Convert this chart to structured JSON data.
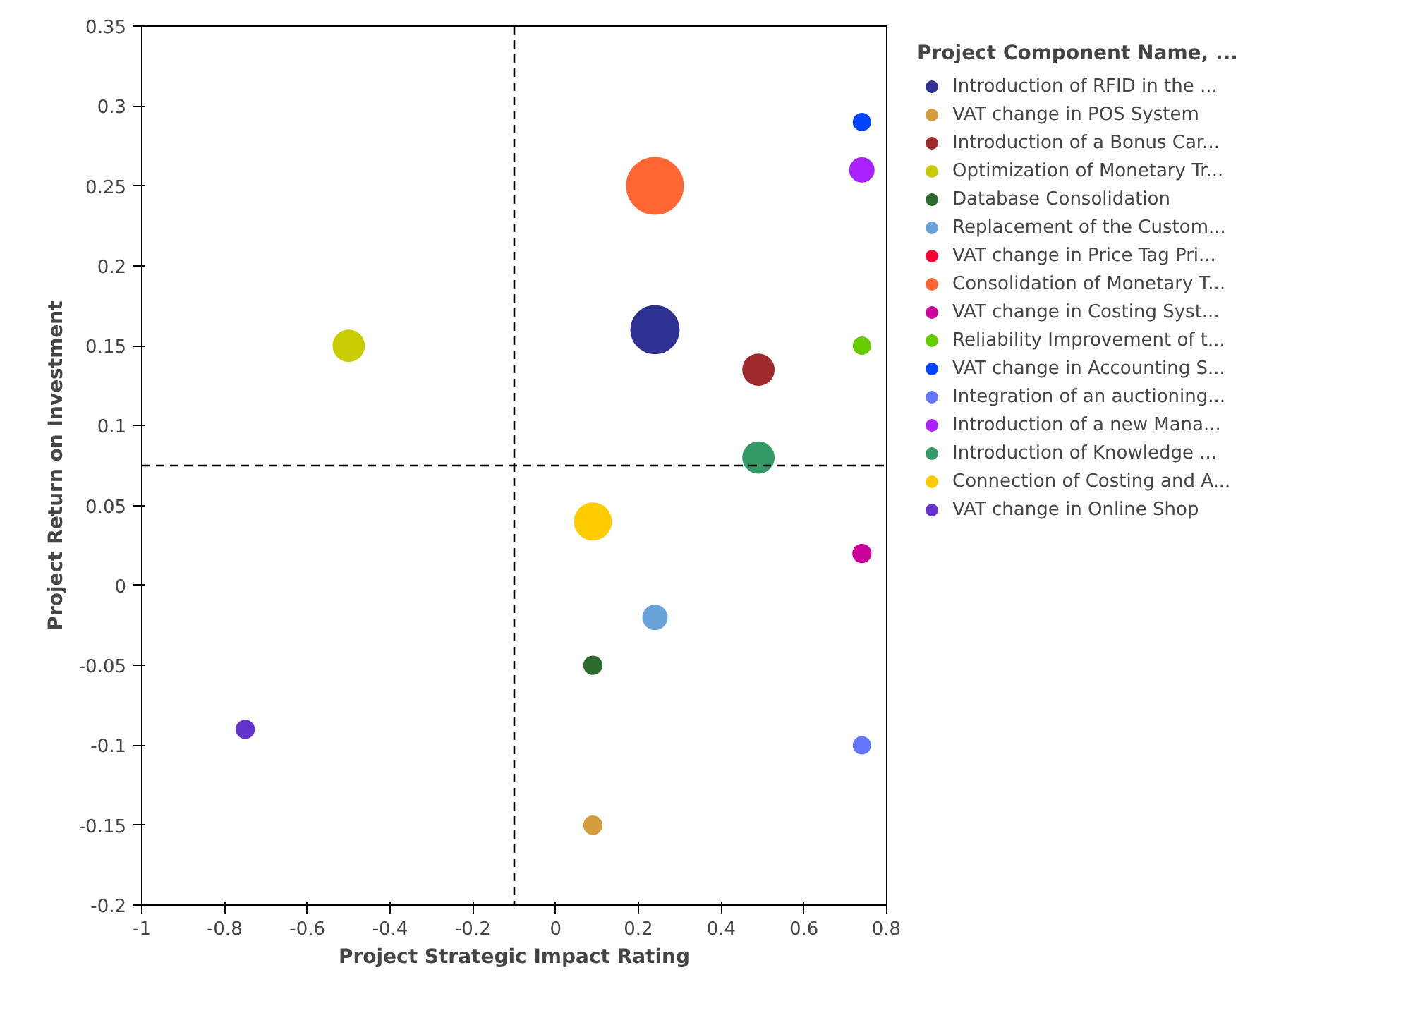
{
  "chart_data": {
    "type": "bubble",
    "xlabel": "Project Strategic Impact Rating",
    "ylabel": "Project Return on Investment",
    "legend_title": "Project Component Name, ...",
    "legend": "right",
    "grid": false,
    "xlim": [
      -1,
      0.8
    ],
    "xticks": [
      -1,
      -0.8,
      -0.6,
      -0.4,
      -0.2,
      0,
      0.2,
      0.4,
      0.6,
      0.8
    ],
    "ylim": [
      -0.2,
      0.35
    ],
    "yticks": [
      -0.2,
      -0.15,
      -0.1,
      -0.05,
      0,
      0.05,
      0.1,
      0.15,
      0.2,
      0.25,
      0.3,
      0.35
    ],
    "ref_lines": [
      {
        "axis": "x",
        "value": -0.1,
        "line_style": "dashed",
        "color": "#000000"
      },
      {
        "axis": "y",
        "value": 0.075,
        "line_style": "dashed",
        "color": "#000000"
      }
    ],
    "series": [
      {
        "name": "Introduction of RFID in the ...",
        "color": "#2e3192",
        "x": [
          0.24
        ],
        "values": [
          0.16
        ],
        "sizes": [
          0.72
        ]
      },
      {
        "name": "VAT change in POS System",
        "color": "#d49c3a",
        "x": [
          0.09
        ],
        "values": [
          -0.15
        ],
        "sizes": [
          0.1
        ]
      },
      {
        "name": "Introduction of a Bonus Car...",
        "color": "#9e2a2b",
        "x": [
          0.49
        ],
        "values": [
          0.135
        ],
        "sizes": [
          0.3
        ]
      },
      {
        "name": "Optimization of Monetary Tr...",
        "color": "#c8cc00",
        "x": [
          -0.5
        ],
        "values": [
          0.15
        ],
        "sizes": [
          0.3
        ]
      },
      {
        "name": "Database Consolidation",
        "color": "#2d6a2d",
        "x": [
          0.09
        ],
        "values": [
          -0.05
        ],
        "sizes": [
          0.1
        ]
      },
      {
        "name": "Replacement of the Custom...",
        "color": "#6aa3d9",
        "x": [
          0.24
        ],
        "values": [
          -0.02
        ],
        "sizes": [
          0.18
        ]
      },
      {
        "name": "VAT change in Price Tag Pri...",
        "color": "#ff0033",
        "x": [
          null
        ],
        "values": [
          null
        ],
        "sizes": [
          null
        ]
      },
      {
        "name": "Consolidation of Monetary T...",
        "color": "#ff6633",
        "x": [
          0.24
        ],
        "values": [
          0.25
        ],
        "sizes": [
          1
        ]
      },
      {
        "name": "VAT change in Costing Syst...",
        "color": "#cc0099",
        "x": [
          0.74
        ],
        "values": [
          0.02
        ],
        "sizes": [
          0.1
        ]
      },
      {
        "name": "Reliability Improvement of t...",
        "color": "#66cc00",
        "x": [
          0.74
        ],
        "values": [
          0.15
        ],
        "sizes": [
          0.09
        ]
      },
      {
        "name": "VAT change in Accounting S...",
        "color": "#0044ff",
        "x": [
          0.74
        ],
        "values": [
          0.29
        ],
        "sizes": [
          0.09
        ]
      },
      {
        "name": "Integration of an auctioning...",
        "color": "#6677ff",
        "x": [
          0.74
        ],
        "values": [
          -0.1
        ],
        "sizes": [
          0.09
        ]
      },
      {
        "name": "Introduction of a new Mana...",
        "color": "#aa22ff",
        "x": [
          0.74
        ],
        "values": [
          0.26
        ],
        "sizes": [
          0.18
        ]
      },
      {
        "name": "Introduction of Knowledge ...",
        "color": "#339966",
        "x": [
          0.49
        ],
        "values": [
          0.08
        ],
        "sizes": [
          0.3
        ]
      },
      {
        "name": "Connection of Costing and A...",
        "color": "#ffcc00",
        "x": [
          0.09
        ],
        "values": [
          0.04
        ],
        "sizes": [
          0.42
        ]
      },
      {
        "name": "VAT change in Online Shop",
        "color": "#6633cc",
        "x": [
          -0.75
        ],
        "values": [
          -0.09
        ],
        "sizes": [
          0.1
        ]
      }
    ]
  }
}
